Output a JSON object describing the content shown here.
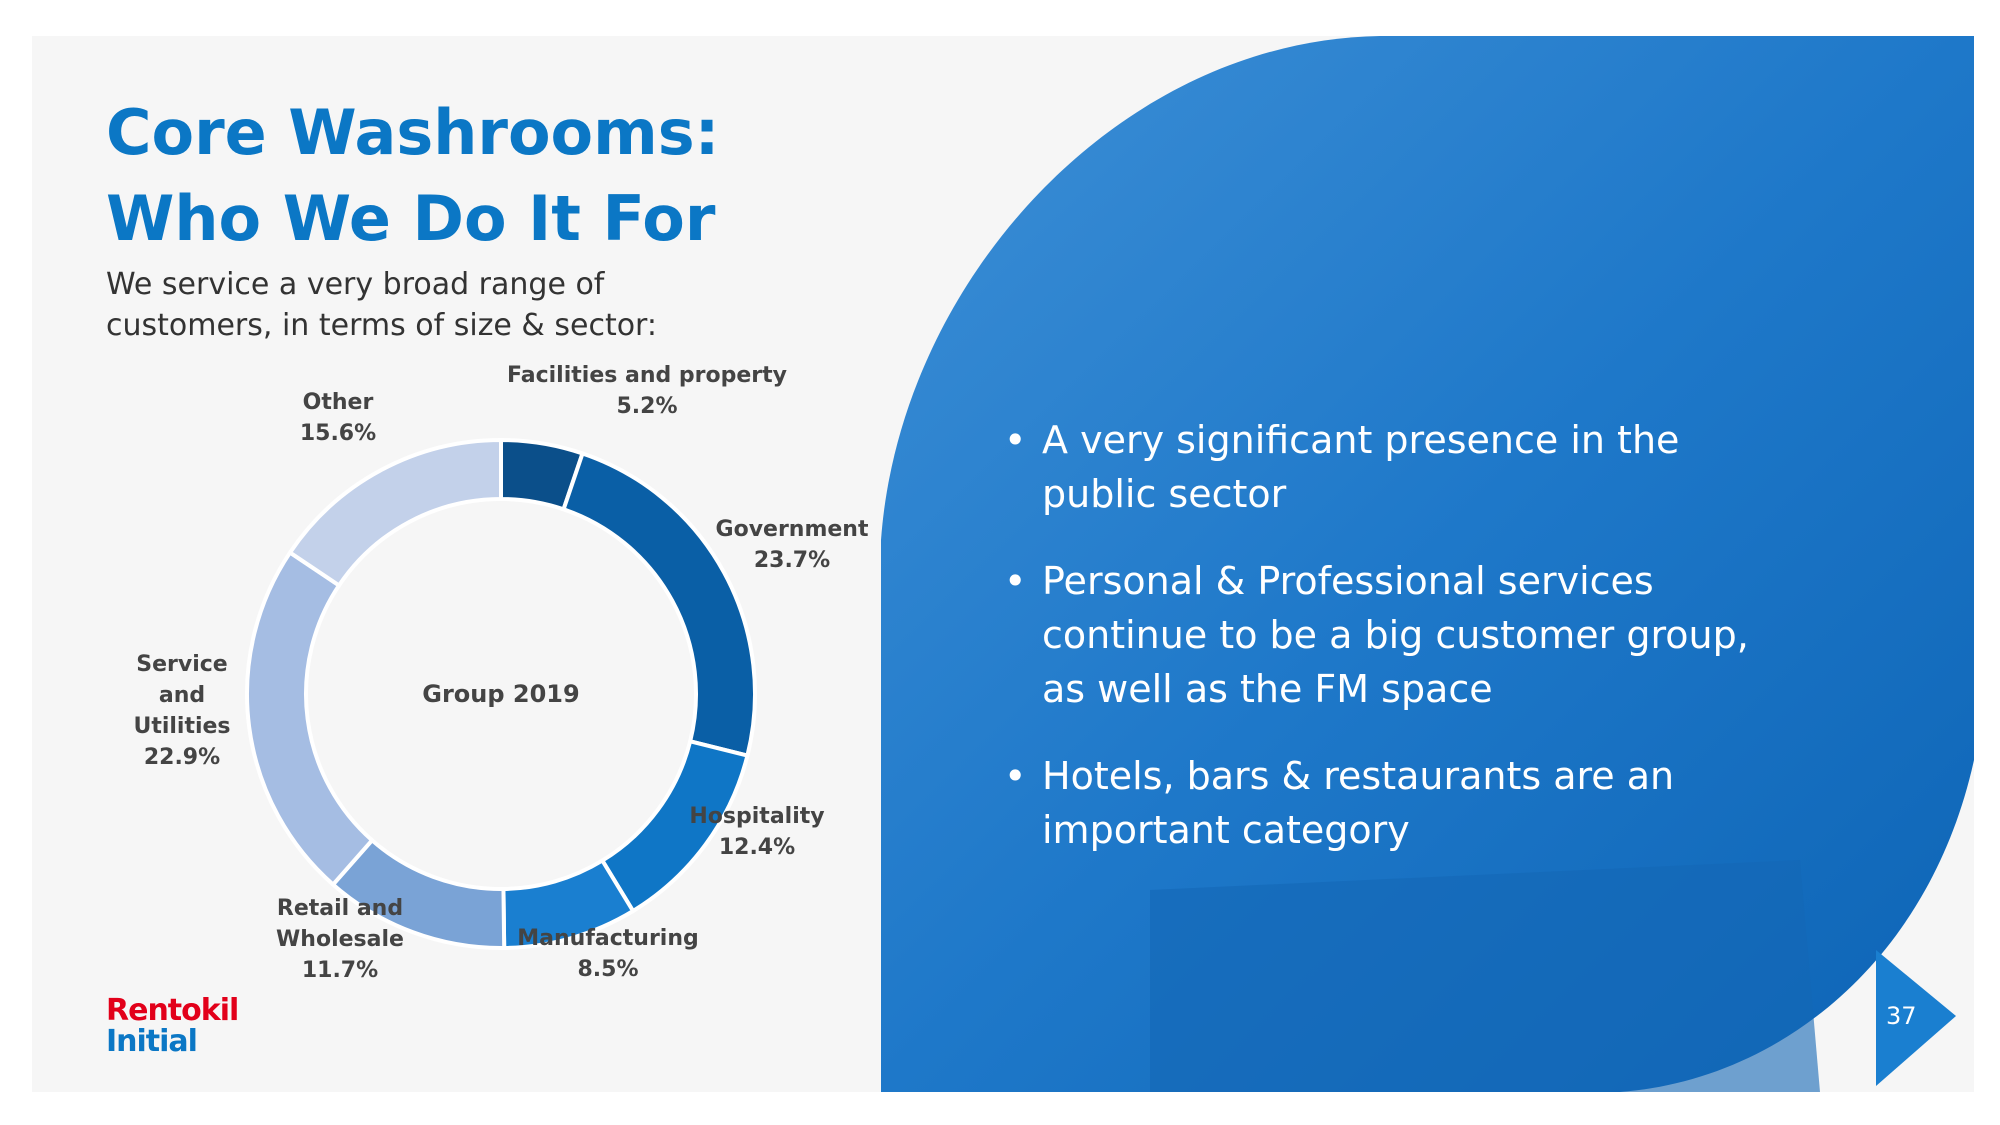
{
  "title_lines": [
    "Core Washrooms:",
    "Who We Do It For"
  ],
  "subtitle_lines": [
    "We service a very broad range of",
    "customers, in terms of size & sector:"
  ],
  "bullets": [
    "A very significant presence in the public sector",
    "Personal & Professional services continue to be a big customer group, as well as the FM space",
    "Hotels, bars & restaurants are an important category"
  ],
  "logo": {
    "line1": "Rentokil",
    "line2": "Initial"
  },
  "page_number": "37",
  "chart_data": {
    "type": "donut",
    "center_label": "Group 2019",
    "categories": [
      "Facilities and property",
      "Government",
      "Hospitality",
      "Manufacturing",
      "Retail and Wholesale",
      "Service and Utilities",
      "Other"
    ],
    "values": [
      5.2,
      23.7,
      12.4,
      8.5,
      11.7,
      22.9,
      15.6
    ],
    "value_labels": [
      "5.2%",
      "23.7%",
      "12.4%",
      "8.5%",
      "11.7%",
      "22.9%",
      "15.6%"
    ],
    "colors": [
      "#0b4f8a",
      "#0a5fa6",
      "#0f76c6",
      "#1a7fd0",
      "#7aa3d6",
      "#a5bde3",
      "#c3d1ea"
    ]
  }
}
